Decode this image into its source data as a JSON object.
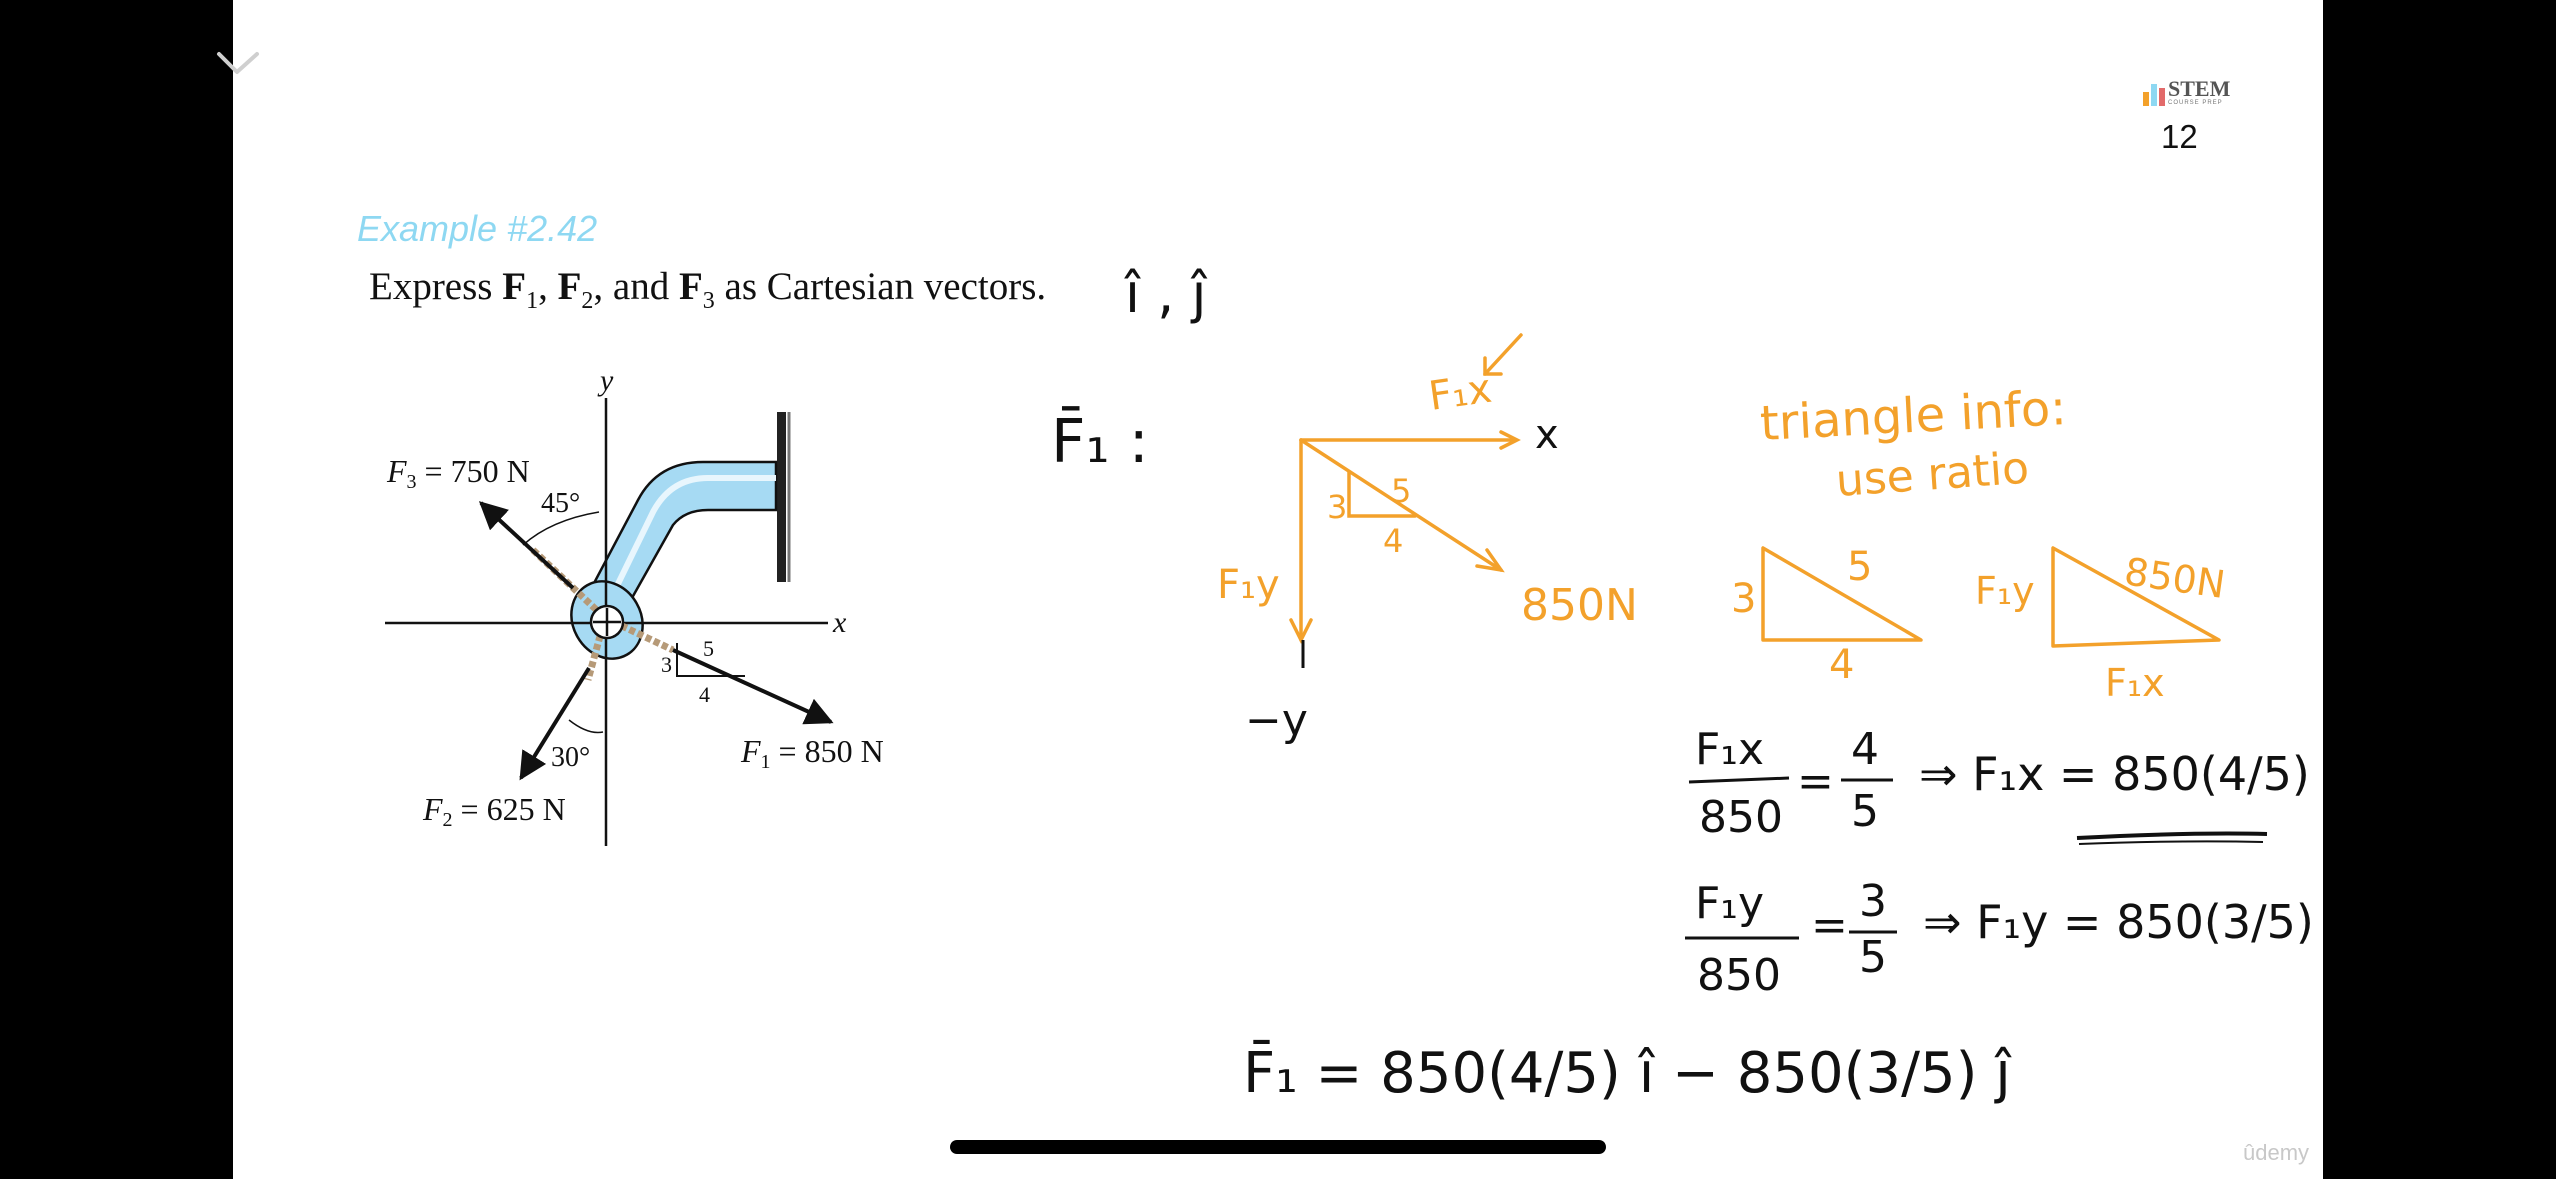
{
  "slide": {
    "example_title": "Example #2.42",
    "problem": {
      "prefix": "Express ",
      "f1": "F",
      "f1_sub": "1",
      "comma1": ", ",
      "f2": "F",
      "f2_sub": "2",
      "and": ", and ",
      "f3": "F",
      "f3_sub": "3",
      "suffix": " as Cartesian vectors."
    },
    "page_number": "12",
    "logo_text": "STEM",
    "logo_sub": "COURSE PREP",
    "watermark": "ûdemy"
  },
  "figure": {
    "y_axis": "y",
    "x_axis": "x",
    "f3_label": "F",
    "f3_sub": "3",
    "f3_value": " = 750 N",
    "f2_label": "F",
    "f2_sub": "2",
    "f2_value": " = 625 N",
    "f1_label": "F",
    "f1_sub": "1",
    "f1_value": " = 850 N",
    "angle_45": "45°",
    "angle_30": "30°",
    "tri_5": "5",
    "tri_3": "3",
    "tri_4": "4"
  },
  "handwriting": {
    "unit_vectors": "î , ĵ",
    "f1_heading": "F̄₁ :",
    "fix": "F₁x",
    "x": "x",
    "fiy": "F₁y",
    "neg_y": "−y",
    "n850": "850N",
    "s3": "3",
    "s4": "4",
    "s5": "5",
    "triangle_info": "triangle info:",
    "use_ratio": "use ratio",
    "t1_3": "3",
    "t1_4": "4",
    "t1_5": "5",
    "t2_fiy": "F₁y",
    "t2_850": "850N",
    "t2_fix": "F₁x",
    "eq1_num": "F₁x",
    "eq1_den": "850",
    "eq1_rhs": "=",
    "eq1_frac_num": "4",
    "eq1_frac_den": "5",
    "eq1_result": "⇒ F₁x = 850(4/5)",
    "eq2_num": "F₁y",
    "eq2_den": "850",
    "eq2_rhs": "=",
    "eq2_frac_num": "3",
    "eq2_frac_den": "5",
    "eq2_result": "⇒ F₁y = 850(3/5)",
    "final": "F̄₁ = 850(4/5) î − 850(3/5) ĵ"
  },
  "colors": {
    "ink": "#f3a12b",
    "pipe": "#a6daf3",
    "title": "#8ed8f2"
  }
}
